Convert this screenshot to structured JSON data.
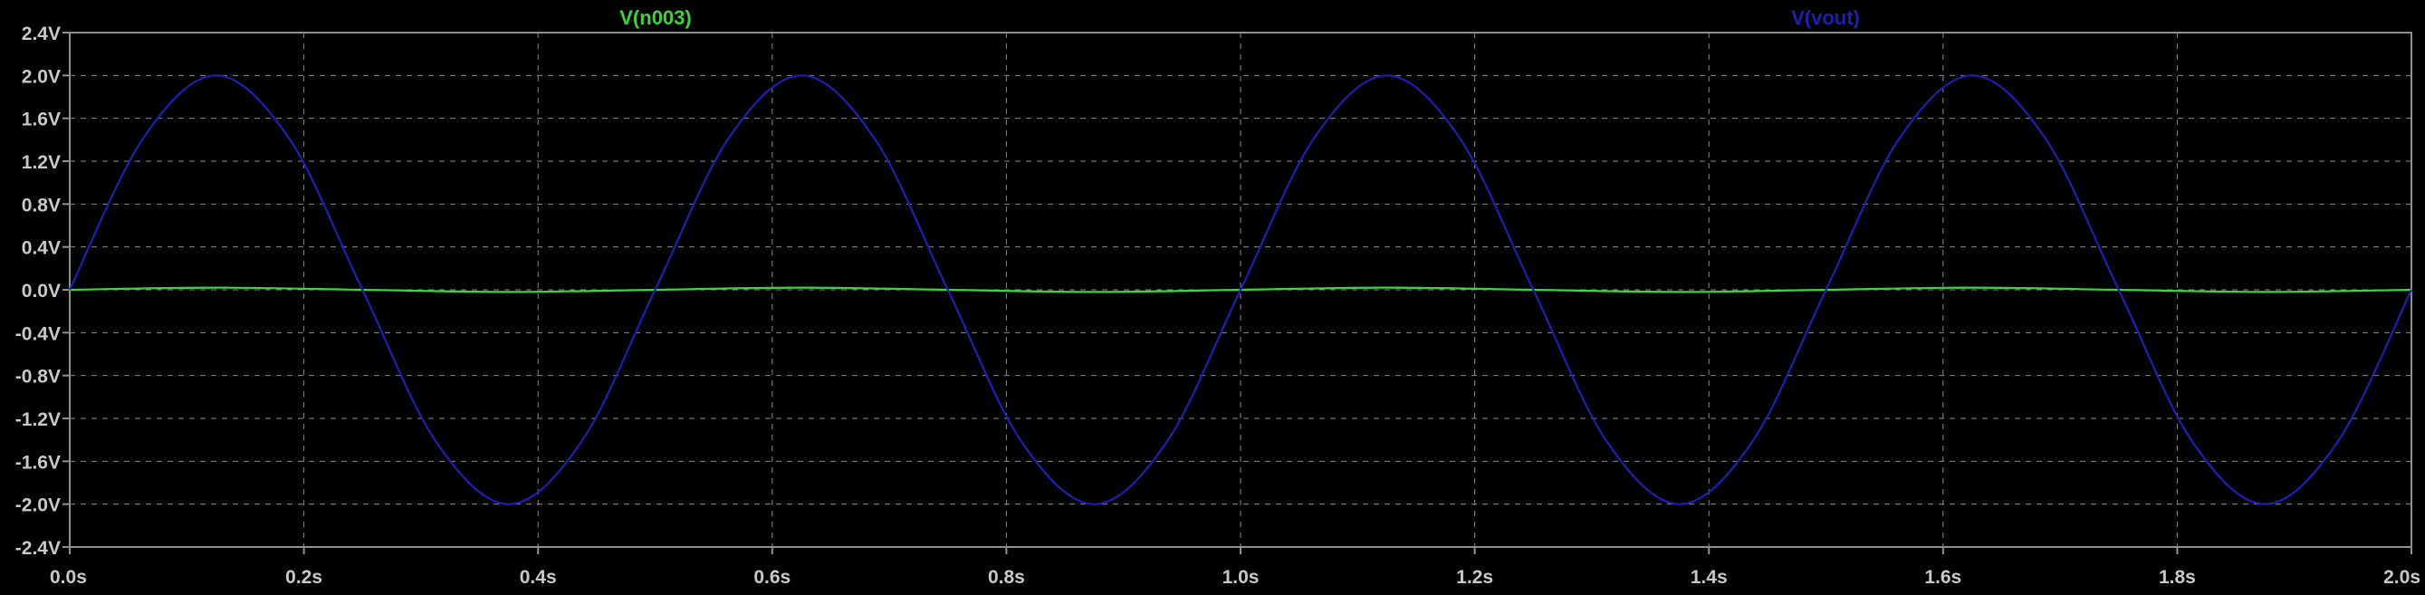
{
  "colors": {
    "background": "#000000",
    "frame": "#909090",
    "grid": "#8a8a8a",
    "tick_text": "#c8c8c8",
    "series_n003": "#3fd33f",
    "series_vout": "#1e1eb4"
  },
  "chart_data": {
    "type": "line",
    "title": "",
    "xlabel": "",
    "ylabel": "",
    "xlim": [
      0.0,
      2.0
    ],
    "ylim": [
      -2.4,
      2.4
    ],
    "grid": true,
    "x_ticks": [
      "0.0s",
      "0.2s",
      "0.4s",
      "0.6s",
      "0.8s",
      "1.0s",
      "1.2s",
      "1.4s",
      "1.6s",
      "1.8s",
      "2.0s"
    ],
    "x_tick_values": [
      0.0,
      0.2,
      0.4,
      0.6,
      0.8,
      1.0,
      1.2,
      1.4,
      1.6,
      1.8,
      2.0
    ],
    "y_ticks": [
      "2.4V",
      "2.0V",
      "1.6V",
      "1.2V",
      "0.8V",
      "0.4V",
      "0.0V",
      "-0.4V",
      "-0.8V",
      "-1.2V",
      "-1.6V",
      "-2.0V",
      "-2.4V"
    ],
    "y_tick_values": [
      2.4,
      2.0,
      1.6,
      1.2,
      0.8,
      0.4,
      0.0,
      -0.4,
      -0.8,
      -1.2,
      -1.6,
      -2.0,
      -2.4
    ],
    "series": [
      {
        "name": "V(n003)",
        "color_key": "series_n003",
        "x": [
          0.0,
          0.125,
          0.25,
          0.375,
          0.5,
          0.625,
          0.75,
          0.875,
          1.0,
          1.125,
          1.25,
          1.375,
          1.5,
          1.625,
          1.75,
          1.875,
          2.0
        ],
        "values": [
          0.0,
          0.02,
          0.0,
          -0.02,
          0.0,
          0.02,
          0.0,
          -0.02,
          0.0,
          0.02,
          0.0,
          -0.02,
          0.0,
          0.02,
          0.0,
          -0.02,
          0.0
        ]
      },
      {
        "name": "V(vout)",
        "color_key": "series_vout",
        "x": [
          0.0,
          0.0625,
          0.125,
          0.1875,
          0.25,
          0.3125,
          0.375,
          0.4375,
          0.5,
          0.5625,
          0.625,
          0.6875,
          0.75,
          0.8125,
          0.875,
          0.9375,
          1.0,
          1.0625,
          1.125,
          1.1875,
          1.25,
          1.3125,
          1.375,
          1.4375,
          1.5,
          1.5625,
          1.625,
          1.6875,
          1.75,
          1.8125,
          1.875,
          1.9375,
          2.0
        ],
        "values": [
          0.0,
          1.41,
          2.0,
          1.41,
          0.0,
          -1.41,
          -2.0,
          -1.41,
          0.0,
          1.41,
          2.0,
          1.41,
          0.0,
          -1.41,
          -2.0,
          -1.41,
          0.0,
          1.41,
          2.0,
          1.41,
          0.0,
          -1.41,
          -2.0,
          -1.41,
          0.0,
          1.41,
          2.0,
          1.41,
          0.0,
          -1.41,
          -2.0,
          -1.41,
          0.0
        ]
      }
    ]
  }
}
